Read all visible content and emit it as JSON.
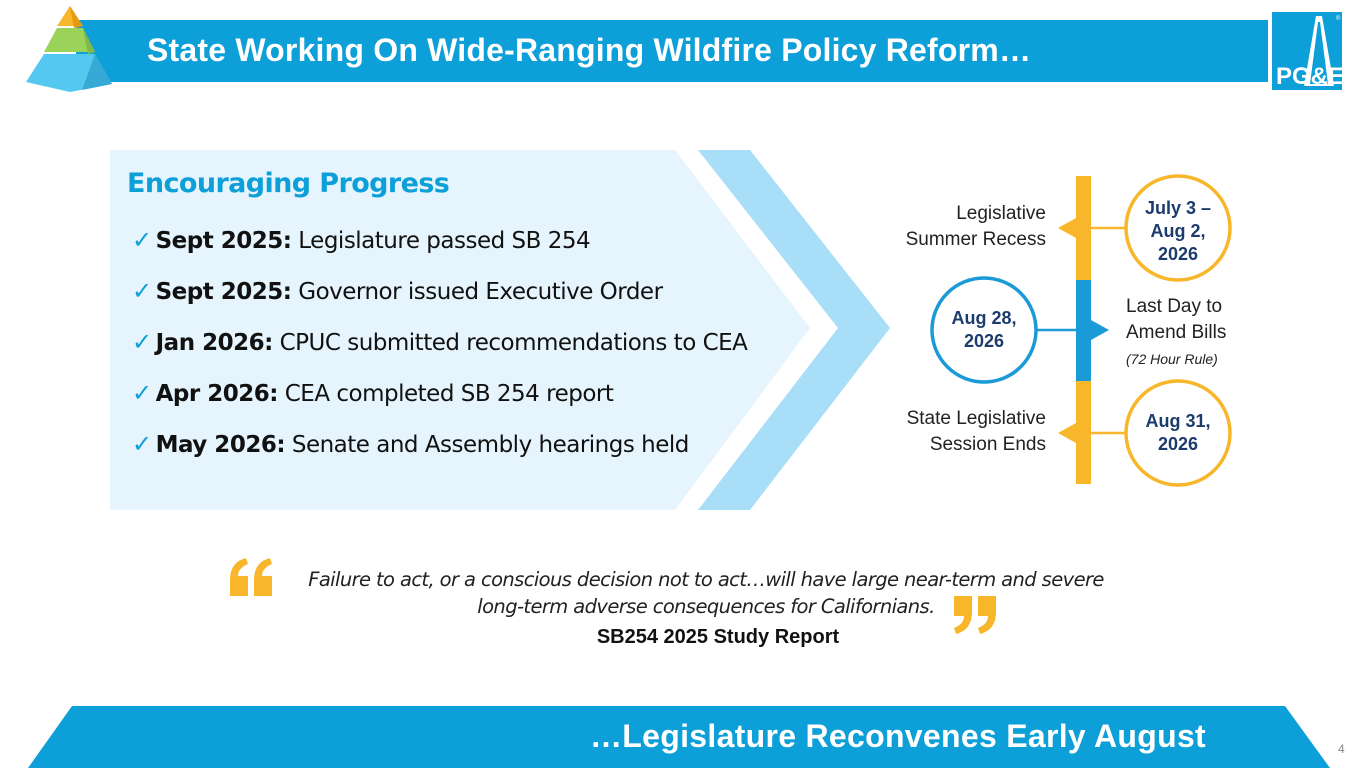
{
  "header": {
    "title": "State Working On Wide-Ranging Wildfire Policy Reform…",
    "logo_text": "PG&E",
    "colors": {
      "bar": "#0c9fd8",
      "pyramid_top": "#f8b62b",
      "pyramid_mid": "#9bd35a",
      "pyramid_base": "#54c8f0"
    }
  },
  "progress": {
    "heading": "Encouraging Progress",
    "check_glyph": "✓",
    "items": [
      {
        "date": "Sept 2025:",
        "text": " Legislature passed SB 254"
      },
      {
        "date": "Sept 2025:",
        "text": " Governor issued Executive Order"
      },
      {
        "date": "Jan 2026:",
        "text": " CPUC submitted recommendations to CEA"
      },
      {
        "date": "Apr 2026:",
        "text": " CEA completed SB 254 report"
      },
      {
        "date": "May 2026:",
        "text": " Senate and Assembly hearings held"
      }
    ],
    "colors": {
      "panel": "#e6f5fd",
      "chevron": "#a8def7"
    }
  },
  "timeline": {
    "events": [
      {
        "label_lines": [
          "Legislative",
          "Summer Recess"
        ],
        "date_lines": [
          "July 3 –",
          "Aug 2,",
          "2026"
        ],
        "color": "#f8b62b"
      },
      {
        "label_lines": [
          "Last Day to",
          "Amend Bills"
        ],
        "note": "(72 Hour Rule)",
        "date_lines": [
          "Aug 28,",
          "2026"
        ],
        "color": "#1a9ad6"
      },
      {
        "label_lines": [
          "State Legislative",
          "Session Ends"
        ],
        "date_lines": [
          "Aug 31,",
          "2026"
        ],
        "color": "#f8b62b"
      }
    ]
  },
  "quote": {
    "text_line1": "Failure to act, or a conscious decision not to act…will have large near-term and severe",
    "text_line2": "long-term adverse consequences for Californians.",
    "source": "SB254 2025 Study Report",
    "mark_color": "#f8b62b"
  },
  "footer": {
    "text": "…Legislature Reconvenes Early August",
    "page_number": "4",
    "color": "#0c9fd8"
  }
}
